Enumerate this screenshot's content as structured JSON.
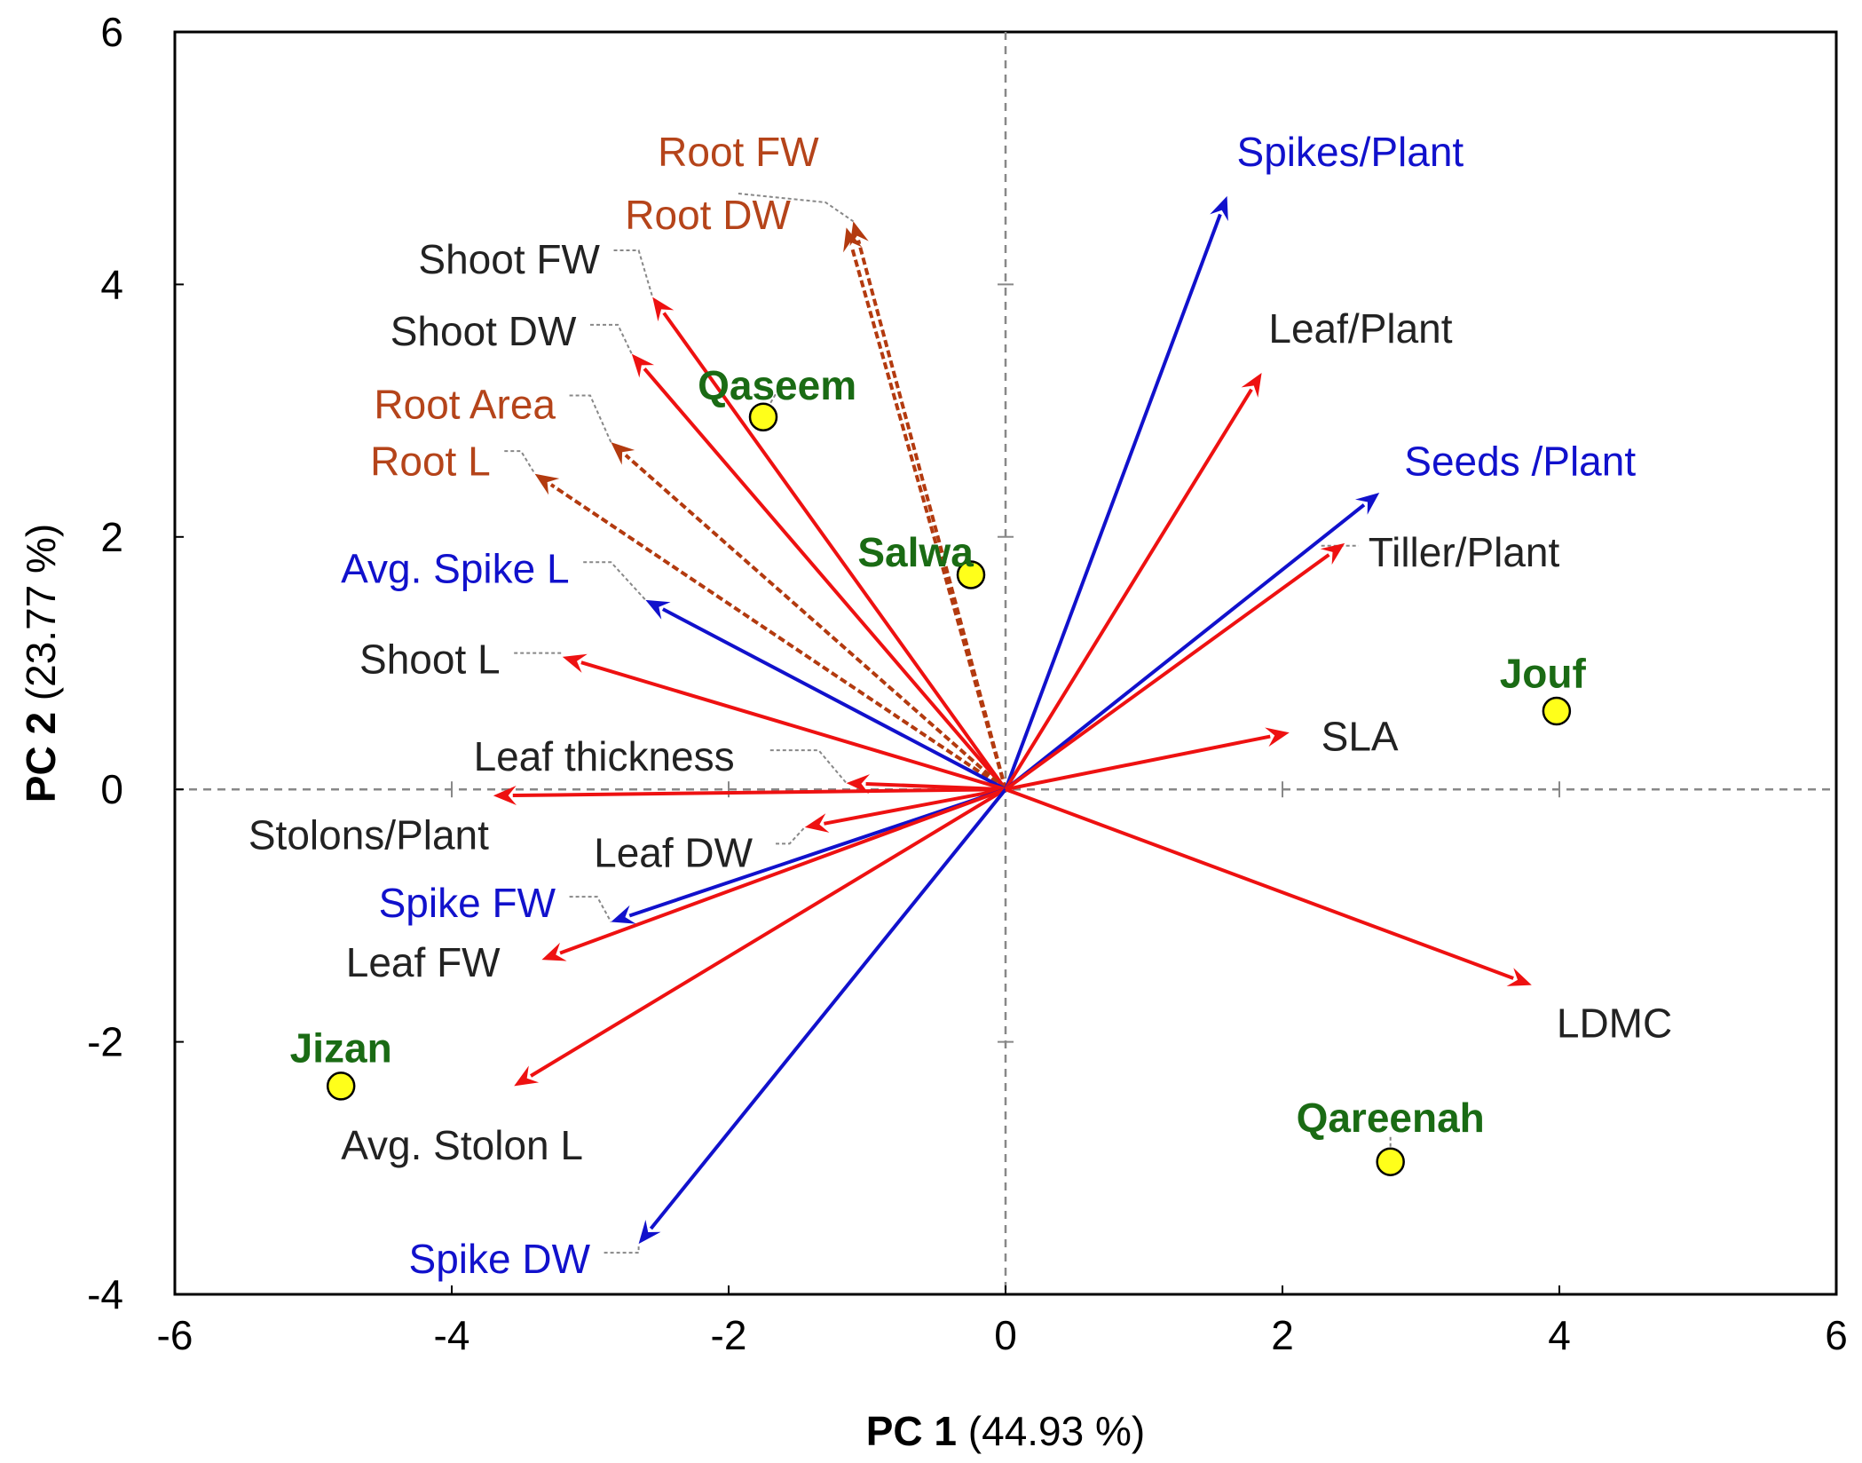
{
  "colors": {
    "black": "#222222",
    "red": "#ee1111",
    "blue": "#1111cc",
    "brown_label": "#b5441a",
    "brown_arrow": "#b33a0f",
    "green": "#1a6b14",
    "point_fill": "#ffff1a",
    "grid": "#888888"
  },
  "chart_data": {
    "type": "scatter",
    "subtype": "pca-biplot",
    "title": "",
    "xlabel": {
      "bold": "PC 1",
      "rest": " (44.93 %)"
    },
    "ylabel": {
      "bold": "PC 2",
      "rest": " (23.77 %)"
    },
    "xlim": [
      -6,
      6
    ],
    "ylim": [
      -4,
      6
    ],
    "xticks": [
      -6,
      -4,
      -2,
      0,
      2,
      4,
      6
    ],
    "yticks": [
      -4,
      -2,
      0,
      2,
      4,
      6
    ],
    "xtick_labels": [
      "-6",
      "-4",
      "-2",
      "0",
      "2",
      "4",
      "6"
    ],
    "ytick_labels": [
      "-4",
      "-2",
      "0",
      "2",
      "4",
      "6"
    ],
    "grid": false,
    "reference_lines": {
      "x": 0,
      "y": 0,
      "style": "dashed"
    },
    "loadings": [
      {
        "name": "Root FW",
        "x": -1.1,
        "y": 4.5,
        "group": "root",
        "label_x": -1.93,
        "label_y": 5.05,
        "anchor": "middle",
        "leader": [
          [
            -1.93,
            4.72
          ],
          [
            -1.3,
            4.65
          ],
          [
            -1.1,
            4.5
          ]
        ]
      },
      {
        "name": "Root DW",
        "x": -1.15,
        "y": 4.45,
        "group": "root",
        "label_x": -2.15,
        "label_y": 4.55,
        "anchor": "middle",
        "leader": []
      },
      {
        "name": "Shoot FW",
        "x": -2.55,
        "y": 3.9,
        "group": "black",
        "label_x": -2.93,
        "label_y": 4.2,
        "anchor": "end",
        "leader": [
          [
            -2.83,
            4.27
          ],
          [
            -2.65,
            4.27
          ],
          [
            -2.55,
            3.9
          ]
        ]
      },
      {
        "name": "Shoot DW",
        "x": -2.7,
        "y": 3.45,
        "group": "black",
        "label_x": -3.1,
        "label_y": 3.63,
        "anchor": "end",
        "leader": [
          [
            -3.0,
            3.68
          ],
          [
            -2.8,
            3.68
          ],
          [
            -2.7,
            3.45
          ]
        ]
      },
      {
        "name": "Root Area",
        "x": -2.85,
        "y": 2.75,
        "group": "root",
        "label_x": -3.25,
        "label_y": 3.05,
        "anchor": "end",
        "leader": [
          [
            -3.15,
            3.12
          ],
          [
            -3.0,
            3.12
          ],
          [
            -2.85,
            2.75
          ]
        ]
      },
      {
        "name": "Root L",
        "x": -3.4,
        "y": 2.5,
        "group": "root",
        "label_x": -3.72,
        "label_y": 2.6,
        "anchor": "end",
        "leader": [
          [
            -3.62,
            2.68
          ],
          [
            -3.5,
            2.68
          ],
          [
            -3.4,
            2.5
          ]
        ]
      },
      {
        "name": "Avg. Spike L",
        "x": -2.6,
        "y": 1.5,
        "group": "blue",
        "label_x": -3.15,
        "label_y": 1.75,
        "anchor": "end",
        "leader": [
          [
            -3.05,
            1.8
          ],
          [
            -2.85,
            1.8
          ],
          [
            -2.6,
            1.5
          ]
        ]
      },
      {
        "name": "Shoot L",
        "x": -3.2,
        "y": 1.05,
        "group": "red",
        "label_x": -3.65,
        "label_y": 1.03,
        "anchor": "end",
        "leader": [
          [
            -3.55,
            1.08
          ],
          [
            -3.2,
            1.08
          ]
        ]
      },
      {
        "name": "Leaf thickness",
        "x": -1.15,
        "y": 0.05,
        "group": "red",
        "label_x": -2.9,
        "label_y": 0.26,
        "anchor": "middle",
        "leader": [
          [
            -1.7,
            0.31
          ],
          [
            -1.35,
            0.31
          ],
          [
            -1.15,
            0.05
          ]
        ]
      },
      {
        "name": "Stolons/Plant",
        "x": -3.7,
        "y": -0.05,
        "group": "red",
        "label_x": -4.6,
        "label_y": -0.36,
        "anchor": "middle",
        "leader": []
      },
      {
        "name": "Leaf DW",
        "x": -1.45,
        "y": -0.3,
        "group": "red",
        "label_x": -2.4,
        "label_y": -0.5,
        "anchor": "middle",
        "leader": [
          [
            -1.66,
            -0.43
          ],
          [
            -1.56,
            -0.43
          ],
          [
            -1.45,
            -0.3
          ]
        ]
      },
      {
        "name": "Spike FW",
        "x": -2.85,
        "y": -1.05,
        "group": "blue",
        "label_x": -3.25,
        "label_y": -0.9,
        "anchor": "end",
        "leader": [
          [
            -3.15,
            -0.85
          ],
          [
            -2.95,
            -0.85
          ],
          [
            -2.85,
            -1.05
          ]
        ]
      },
      {
        "name": "Leaf FW",
        "x": -3.35,
        "y": -1.35,
        "group": "red",
        "label_x": -3.65,
        "label_y": -1.37,
        "anchor": "end",
        "leader": []
      },
      {
        "name": "Avg. Stolon L",
        "x": -3.55,
        "y": -2.35,
        "group": "red",
        "label_x": -4.8,
        "label_y": -2.82,
        "anchor": "start",
        "leader": []
      },
      {
        "name": "Spike DW",
        "x": -2.65,
        "y": -3.6,
        "group": "blue",
        "label_x": -3.0,
        "label_y": -3.72,
        "anchor": "end",
        "leader": [
          [
            -2.9,
            -3.67
          ],
          [
            -2.65,
            -3.67
          ],
          [
            -2.65,
            -3.6
          ]
        ]
      },
      {
        "name": "Spikes/Plant",
        "x": 1.6,
        "y": 4.7,
        "group": "blue",
        "label_x": 1.67,
        "label_y": 5.05,
        "anchor": "start",
        "leader": []
      },
      {
        "name": "Leaf/Plant",
        "x": 1.85,
        "y": 3.3,
        "group": "red",
        "label_x": 1.9,
        "label_y": 3.65,
        "anchor": "start",
        "leader": []
      },
      {
        "name": "Seeds /Plant",
        "x": 2.7,
        "y": 2.35,
        "group": "blue",
        "label_x": 2.88,
        "label_y": 2.6,
        "anchor": "start",
        "leader": []
      },
      {
        "name": "Tiller/Plant",
        "x": 2.45,
        "y": 1.95,
        "group": "red",
        "label_x": 2.62,
        "label_y": 1.88,
        "anchor": "start",
        "leader": [
          [
            2.28,
            1.93
          ],
          [
            2.55,
            1.93
          ]
        ]
      },
      {
        "name": "SLA",
        "x": 2.05,
        "y": 0.45,
        "group": "red",
        "label_x": 2.28,
        "label_y": 0.42,
        "anchor": "start",
        "leader": []
      },
      {
        "name": "LDMC",
        "x": 3.8,
        "y": -1.55,
        "group": "red",
        "label_x": 3.98,
        "label_y": -1.85,
        "anchor": "start",
        "leader": []
      }
    ],
    "scores": [
      {
        "name": "Qaseem",
        "x": -1.75,
        "y": 2.95,
        "label_x": -1.65,
        "label_y": 3.2,
        "anchor": "middle",
        "leader": [
          [
            -1.72,
            3.02
          ],
          [
            -1.65,
            3.15
          ]
        ]
      },
      {
        "name": "Salwa",
        "x": -0.25,
        "y": 1.7,
        "label_x": -0.65,
        "label_y": 1.88,
        "anchor": "middle",
        "leader": []
      },
      {
        "name": "Jouf",
        "x": 3.98,
        "y": 0.62,
        "label_x": 3.88,
        "label_y": 0.92,
        "anchor": "middle",
        "leader": []
      },
      {
        "name": "Jizan",
        "x": -4.8,
        "y": -2.35,
        "label_x": -4.8,
        "label_y": -2.05,
        "anchor": "middle",
        "leader": []
      },
      {
        "name": "Qareenah",
        "x": 2.78,
        "y": -2.95,
        "label_x": 2.78,
        "label_y": -2.6,
        "anchor": "middle",
        "leader": [
          [
            2.78,
            -2.88
          ],
          [
            2.78,
            -2.75
          ]
        ]
      }
    ]
  }
}
